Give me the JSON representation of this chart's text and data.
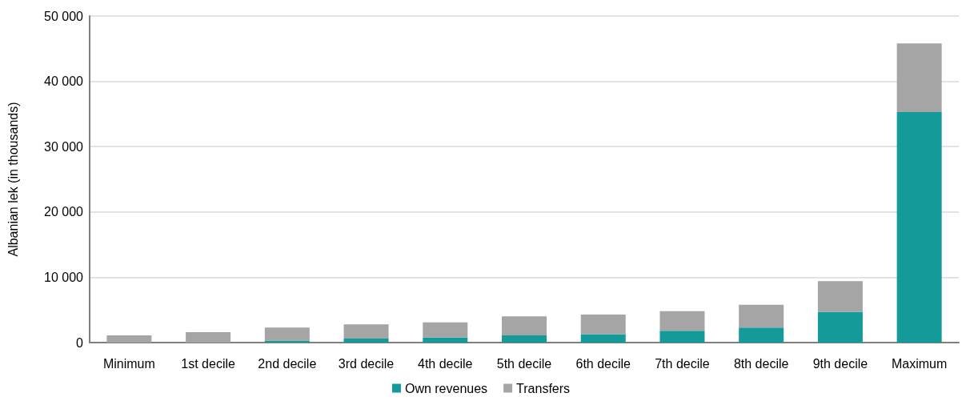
{
  "chart_data": {
    "type": "bar",
    "stacked": true,
    "ylabel": "Albanian lek (in thousands)",
    "categories": [
      "Minimum",
      "1st decile",
      "2nd decile",
      "3rd decile",
      "4th decile",
      "5th decile",
      "6th decile",
      "7th decile",
      "8th decile",
      "9th decile",
      "Maximum"
    ],
    "series": [
      {
        "name": "Own revenues",
        "color": "#159a9a",
        "values": [
          0,
          0,
          300,
          600,
          800,
          1100,
          1300,
          1800,
          2300,
          4700,
          35300
        ]
      },
      {
        "name": "Transfers",
        "color": "#a5a5a5",
        "values": [
          1100,
          1600,
          2000,
          2200,
          2300,
          2900,
          3000,
          3000,
          3500,
          4700,
          10500
        ]
      }
    ],
    "ylim": [
      0,
      50000
    ],
    "yticks": [
      {
        "value": 0,
        "label": "0"
      },
      {
        "value": 10000,
        "label": "10 000"
      },
      {
        "value": 20000,
        "label": "20 000"
      },
      {
        "value": 30000,
        "label": "30 000"
      },
      {
        "value": 40000,
        "label": "40 000"
      },
      {
        "value": 50000,
        "label": "50 000"
      }
    ],
    "grid": "y",
    "legend": "bottom"
  }
}
